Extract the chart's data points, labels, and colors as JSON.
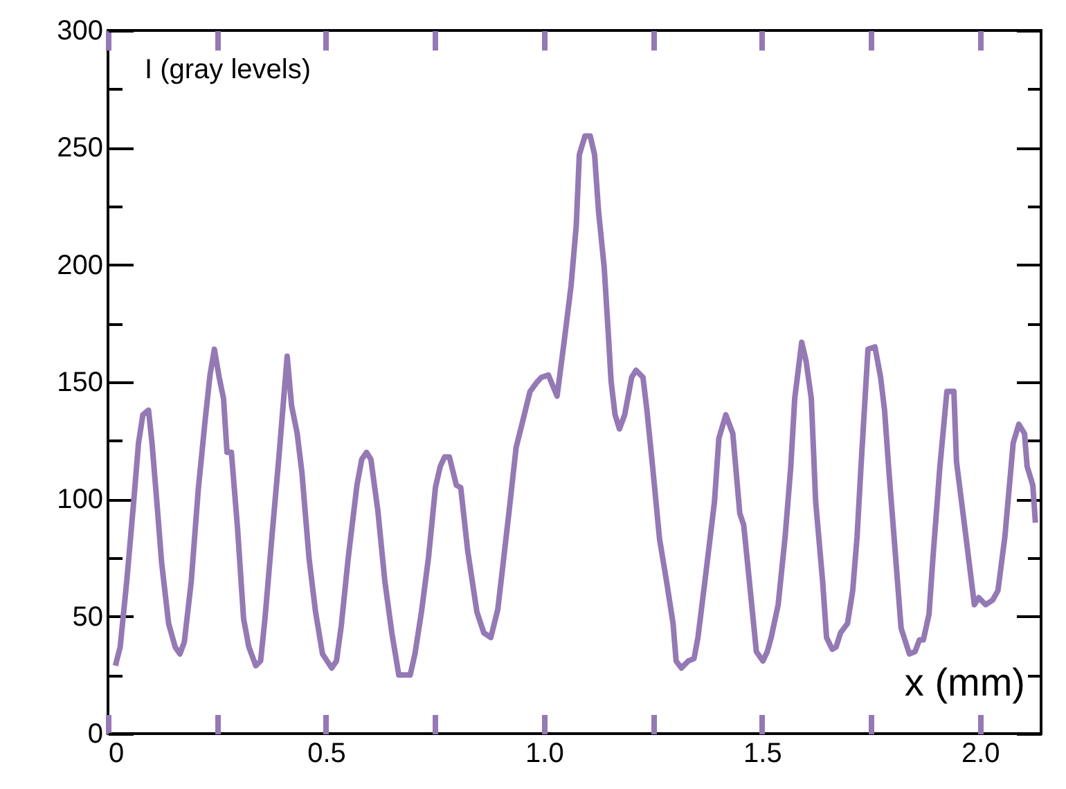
{
  "chart_data": {
    "type": "line",
    "xlabel": "x (mm)",
    "ylabel": "I (gray levels)",
    "color": "#9479b4",
    "xlim": [
      0,
      2.14
    ],
    "ylim": [
      0,
      300
    ],
    "xticks": [
      0,
      {
        "value": 0.25,
        "label": null
      },
      0.5,
      {
        "value": 0.75,
        "label": null
      },
      {
        "value": 1,
        "label": "1.0"
      },
      {
        "value": 1.25,
        "label": null
      },
      1.5,
      {
        "value": 1.75,
        "label": null
      },
      {
        "value": 2,
        "label": "2.0"
      }
    ],
    "yticks": [
      0,
      {
        "value": 25,
        "label": null
      },
      50,
      {
        "value": 75,
        "label": null
      },
      100,
      {
        "value": 125,
        "label": null
      },
      150,
      {
        "value": 175,
        "label": null
      },
      200,
      {
        "value": 225,
        "label": null
      },
      250,
      {
        "value": 275,
        "label": null
      },
      300
    ],
    "x": [
      0.017,
      0.028,
      0.043,
      0.059,
      0.07,
      0.08,
      0.093,
      0.101,
      0.112,
      0.123,
      0.139,
      0.154,
      0.165,
      0.175,
      0.191,
      0.207,
      0.223,
      0.234,
      0.244,
      0.255,
      0.265,
      0.273,
      0.283,
      0.297,
      0.311,
      0.323,
      0.339,
      0.35,
      0.36,
      0.376,
      0.392,
      0.403,
      0.411,
      0.421,
      0.434,
      0.445,
      0.461,
      0.476,
      0.492,
      0.513,
      0.524,
      0.535,
      0.551,
      0.571,
      0.582,
      0.593,
      0.603,
      0.619,
      0.635,
      0.651,
      0.667,
      0.682,
      0.693,
      0.704,
      0.719,
      0.735,
      0.751,
      0.762,
      0.772,
      0.783,
      0.799,
      0.809,
      0.825,
      0.846,
      0.862,
      0.878,
      0.894,
      0.904,
      0.92,
      0.936,
      0.952,
      0.968,
      0.984,
      0.994,
      1.01,
      1.03,
      1.046,
      1.062,
      1.074,
      1.081,
      1.094,
      1.106,
      1.116,
      1.125,
      1.138,
      1.147,
      1.154,
      1.163,
      1.173,
      1.185,
      1.201,
      1.211,
      1.227,
      1.236,
      1.249,
      1.265,
      1.281,
      1.296,
      1.303,
      1.315,
      1.331,
      1.344,
      1.353,
      1.369,
      1.391,
      1.401,
      1.417,
      1.433,
      1.449,
      1.458,
      1.471,
      1.487,
      1.502,
      1.512,
      1.521,
      1.537,
      1.553,
      1.566,
      1.575,
      1.591,
      1.601,
      1.613,
      1.623,
      1.639,
      1.648,
      1.661,
      1.67,
      1.68,
      1.696,
      1.708,
      1.718,
      1.727,
      1.743,
      1.759,
      1.772,
      1.781,
      1.791,
      1.804,
      1.819,
      1.838,
      1.851,
      1.861,
      1.87,
      1.883,
      1.892,
      1.908,
      1.924,
      1.94,
      1.946,
      1.965,
      1.987,
      1.997,
      2.013,
      2.029,
      2.041,
      2.057,
      2.076,
      2.089,
      2.102,
      2.108,
      2.121,
      2.127
    ],
    "values": [
      29,
      37,
      65,
      99,
      124,
      136,
      138,
      124,
      99,
      73,
      47,
      37,
      34,
      39,
      65,
      104,
      134,
      153,
      164,
      152,
      143,
      120,
      120,
      88,
      49,
      37,
      29,
      31,
      49,
      84,
      118,
      143,
      161,
      140,
      128,
      111,
      75,
      52,
      34,
      28,
      31,
      46,
      75,
      106,
      117,
      120,
      117,
      95,
      65,
      43,
      25,
      25,
      25,
      34,
      52,
      75,
      105,
      114,
      118,
      118,
      106,
      105,
      78,
      52,
      43,
      41,
      53,
      69,
      95,
      122,
      134,
      146,
      150,
      152,
      153,
      144,
      167,
      191,
      217,
      247,
      255,
      255,
      247,
      223,
      199,
      172,
      150,
      136,
      130,
      136,
      152,
      155,
      152,
      138,
      114,
      83,
      65,
      47,
      31,
      28,
      31,
      32,
      41,
      65,
      99,
      126,
      136,
      128,
      94,
      89,
      65,
      35,
      31,
      35,
      41,
      55,
      84,
      114,
      143,
      167,
      159,
      143,
      99,
      65,
      41,
      36,
      37,
      43,
      47,
      61,
      84,
      114,
      164,
      165,
      152,
      138,
      112,
      81,
      45,
      34,
      35,
      40,
      40,
      51,
      75,
      114,
      146,
      146,
      116,
      88,
      55,
      58,
      55,
      57,
      61,
      84,
      124,
      132,
      128,
      114,
      106,
      90
    ]
  }
}
